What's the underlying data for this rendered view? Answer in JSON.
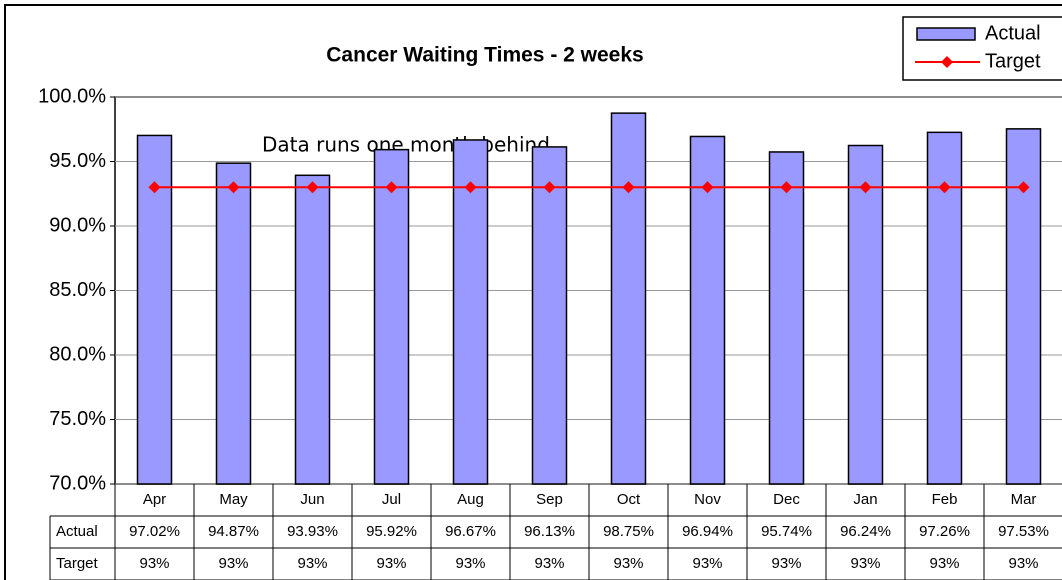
{
  "chart_data": {
    "type": "bar",
    "title": "Cancer Waiting Times - 2 weeks",
    "annotation": "Data runs one month behind",
    "categories": [
      "Apr",
      "May",
      "Jun",
      "Jul",
      "Aug",
      "Sep",
      "Oct",
      "Nov",
      "Dec",
      "Jan",
      "Feb",
      "Mar"
    ],
    "series": [
      {
        "name": "Actual",
        "type": "bar",
        "color": "#9999ff",
        "values": [
          97.02,
          94.87,
          93.93,
          95.92,
          96.67,
          96.13,
          98.75,
          96.94,
          95.74,
          96.24,
          97.26,
          97.53
        ],
        "value_labels": [
          "97.02%",
          "94.87%",
          "93.93%",
          "95.92%",
          "96.67%",
          "96.13%",
          "98.75%",
          "96.94%",
          "95.74%",
          "96.24%",
          "97.26%",
          "97.53%"
        ]
      },
      {
        "name": "Target",
        "type": "line",
        "color": "#ff0000",
        "values": [
          93,
          93,
          93,
          93,
          93,
          93,
          93,
          93,
          93,
          93,
          93,
          93
        ],
        "value_labels": [
          "93%",
          "93%",
          "93%",
          "93%",
          "93%",
          "93%",
          "93%",
          "93%",
          "93%",
          "93%",
          "93%",
          "93%"
        ]
      }
    ],
    "ylim": [
      70,
      100
    ],
    "yticks": [
      {
        "value": 70,
        "label": "70.0%"
      },
      {
        "value": 75,
        "label": "75.0%"
      },
      {
        "value": 80,
        "label": "80.0%"
      },
      {
        "value": 85,
        "label": "85.0%"
      },
      {
        "value": 90,
        "label": "90.0%"
      },
      {
        "value": 95,
        "label": "95.0%"
      },
      {
        "value": 100,
        "label": "100.0%"
      }
    ],
    "grid": true,
    "legend": "top-right",
    "data_table": true
  }
}
